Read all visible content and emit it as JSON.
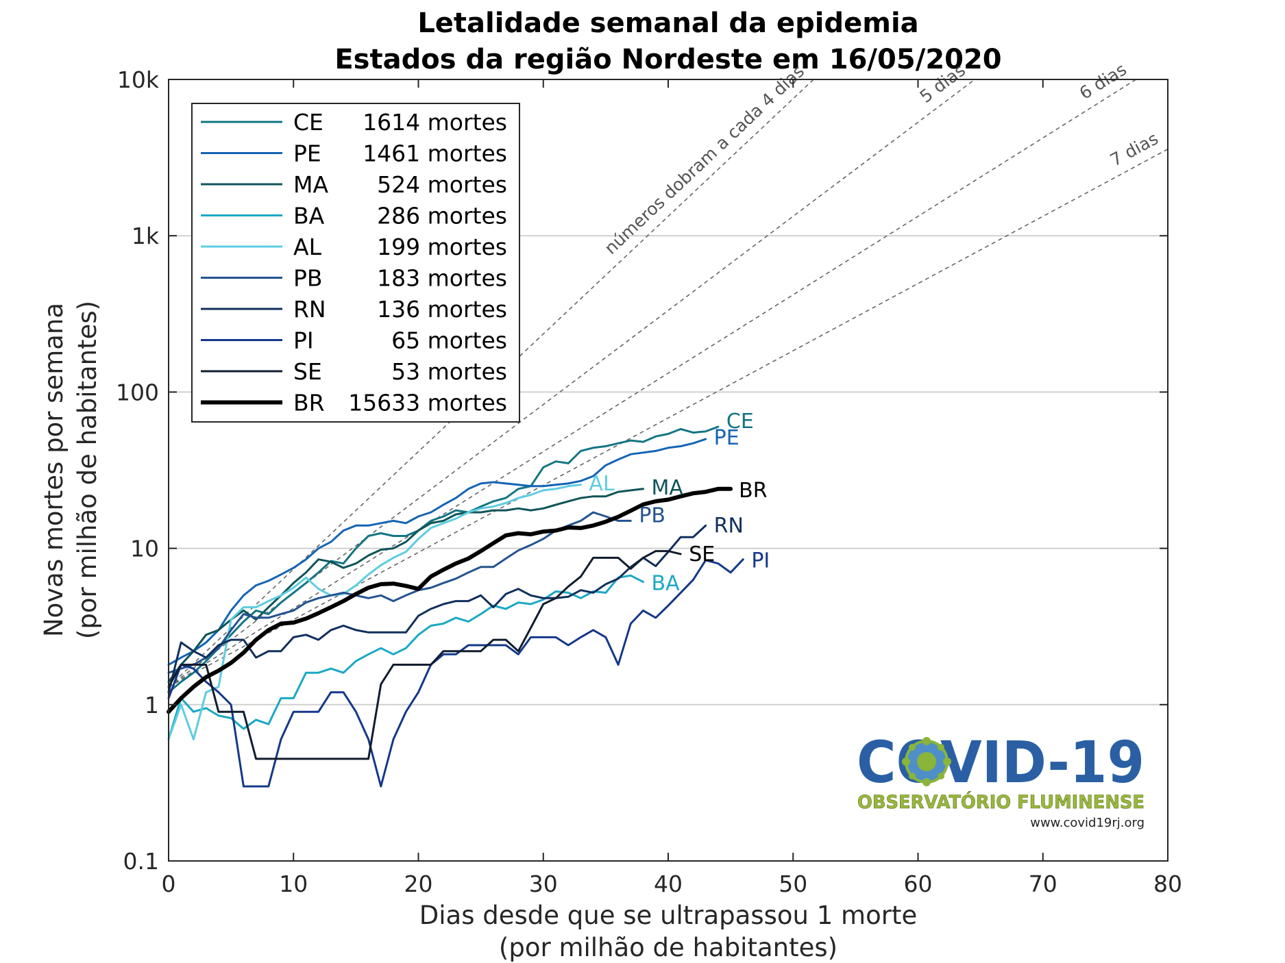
{
  "chart_data": {
    "type": "line",
    "title": "Letalidade semanal da epidemia",
    "subtitle": "Estados da região Nordeste em 16/05/2020",
    "xlabel": "Dias desde que se ultrapassou 1 morte",
    "xlabel2": "(por milhão de habitantes)",
    "ylabel": "Novas mortes por semana",
    "ylabel2": "(por milhão de habitantes)",
    "xlim": [
      0,
      80
    ],
    "ylim": [
      0.1,
      10000
    ],
    "yscale": "log",
    "grid": "horizontal",
    "legend_position": "top-left",
    "xticks": [
      0,
      10,
      20,
      30,
      40,
      50,
      60,
      70,
      80
    ],
    "xtick_labels": [
      "0",
      "10",
      "20",
      "30",
      "40",
      "50",
      "60",
      "70",
      "80"
    ],
    "yticks": [
      0.1,
      1,
      10,
      100,
      1000,
      10000
    ],
    "ytick_labels": [
      "0.1",
      "1",
      "10",
      "100",
      "1k",
      "10k"
    ],
    "reference_lines": [
      {
        "label": "números dobram a cada 4 dias",
        "doubling_days": 4,
        "x_start": 0,
        "y_start": 1.3
      },
      {
        "label": "5 dias",
        "doubling_days": 5,
        "x_start": 0,
        "y_start": 1.3
      },
      {
        "label": "6 dias",
        "doubling_days": 6,
        "x_start": 0,
        "y_start": 1.3
      },
      {
        "label": "7 dias",
        "doubling_days": 7,
        "x_start": 0,
        "y_start": 1.3
      }
    ],
    "series": [
      {
        "name": "CE",
        "deaths": "1614 mortes",
        "color": "#137583",
        "width": 3,
        "x": [
          0,
          1,
          2,
          3,
          4,
          5,
          6,
          7,
          8,
          9,
          10,
          11,
          12,
          13,
          14,
          15,
          16,
          17,
          18,
          19,
          20,
          21,
          22,
          23,
          24,
          25,
          26,
          27,
          28,
          29,
          30,
          31,
          32,
          33,
          34,
          35,
          36,
          37,
          38,
          39,
          40,
          41,
          42,
          43,
          44
        ],
        "y": [
          1.2,
          1.4,
          1.6,
          1.9,
          2.3,
          2.8,
          3.4,
          4.0,
          3.8,
          4.5,
          5.2,
          6.0,
          7.0,
          8.3,
          8.0,
          10.0,
          12.0,
          12.5,
          12.0,
          12.0,
          13.0,
          15.0,
          16.0,
          17.5,
          17.0,
          18.5,
          20.0,
          21.0,
          24.0,
          25.0,
          33.0,
          36.0,
          35.0,
          42.0,
          44.0,
          45.0,
          47.0,
          49.0,
          48.0,
          52.0,
          54.0,
          58.0,
          55.0,
          56.0,
          60.0
        ]
      },
      {
        "name": "PE",
        "deaths": "1461 mortes",
        "color": "#1464b4",
        "width": 3,
        "x": [
          0,
          1,
          2,
          3,
          4,
          5,
          6,
          7,
          8,
          9,
          10,
          11,
          12,
          13,
          14,
          15,
          16,
          17,
          18,
          19,
          20,
          21,
          22,
          23,
          24,
          25,
          26,
          27,
          28,
          29,
          30,
          31,
          32,
          33,
          34,
          35,
          36,
          37,
          38,
          39,
          40,
          41,
          42,
          43
        ],
        "y": [
          1.8,
          2.0,
          2.2,
          2.5,
          3.0,
          4.0,
          5.0,
          5.8,
          6.2,
          6.8,
          7.5,
          8.5,
          10.0,
          11.0,
          13.0,
          14.0,
          14.0,
          14.5,
          15.0,
          14.5,
          16.0,
          17.0,
          19.0,
          21.0,
          24.0,
          26.0,
          26.5,
          26.0,
          25.5,
          25.0,
          25.0,
          25.5,
          26.0,
          27.0,
          29.0,
          34.0,
          37.0,
          40.0,
          41.0,
          42.0,
          44.0,
          45.0,
          47.0,
          50.0
        ]
      },
      {
        "name": "MA",
        "deaths": "524 mortes",
        "color": "#0f5458",
        "width": 3,
        "x": [
          0,
          1,
          2,
          3,
          4,
          5,
          6,
          7,
          8,
          9,
          10,
          11,
          12,
          13,
          14,
          15,
          16,
          17,
          18,
          19,
          20,
          21,
          22,
          23,
          24,
          25,
          26,
          27,
          28,
          29,
          30,
          31,
          32,
          33,
          34,
          35,
          36,
          37,
          38
        ],
        "y": [
          1.4,
          1.8,
          2.2,
          2.8,
          3.0,
          3.5,
          4.0,
          3.5,
          4.2,
          5.0,
          6.0,
          7.0,
          8.5,
          8.2,
          7.5,
          8.0,
          9.0,
          9.8,
          10.0,
          11.0,
          13.0,
          14.5,
          15.0,
          16.5,
          17.0,
          17.0,
          17.5,
          17.5,
          18.0,
          17.5,
          18.0,
          19.0,
          20.0,
          21.0,
          21.5,
          21.5,
          23.0,
          23.5,
          24.0
        ]
      },
      {
        "name": "BA",
        "deaths": "286 mortes",
        "color": "#1aa8c4",
        "width": 3,
        "x": [
          0,
          1,
          2,
          3,
          4,
          5,
          6,
          7,
          8,
          9,
          10,
          11,
          12,
          13,
          14,
          15,
          16,
          17,
          18,
          19,
          20,
          21,
          22,
          23,
          24,
          25,
          26,
          27,
          28,
          29,
          30,
          31,
          32,
          33,
          34,
          35,
          36,
          37,
          38
        ],
        "y": [
          0.6,
          1.1,
          0.9,
          0.95,
          0.85,
          0.82,
          0.7,
          0.8,
          0.75,
          1.1,
          1.1,
          1.6,
          1.6,
          1.7,
          1.6,
          1.9,
          2.1,
          2.3,
          2.1,
          2.3,
          2.8,
          3.2,
          3.3,
          3.6,
          3.4,
          3.8,
          4.3,
          4.1,
          4.5,
          4.4,
          4.7,
          5.3,
          5.2,
          4.8,
          5.3,
          5.2,
          6.5,
          6.7,
          6.1
        ]
      },
      {
        "name": "AL",
        "deaths": "199 mortes",
        "color": "#5ccde0",
        "width": 3,
        "x": [
          0,
          1,
          2,
          3,
          4,
          5,
          6,
          7,
          8,
          9,
          10,
          11,
          12,
          13,
          14,
          15,
          16,
          17,
          18,
          19,
          20,
          21,
          22,
          23,
          24,
          25,
          26,
          27,
          28,
          29,
          30,
          31,
          32,
          33
        ],
        "y": [
          0.6,
          1.0,
          0.6,
          1.2,
          1.3,
          3.5,
          4.2,
          4.2,
          4.6,
          5.0,
          5.6,
          6.5,
          5.5,
          5.0,
          5.1,
          5.8,
          6.8,
          7.8,
          8.7,
          9.5,
          11.5,
          13.5,
          14.5,
          15.5,
          17.0,
          18.0,
          18.5,
          19.5,
          21.0,
          22.0,
          23.5,
          24.0,
          25.0,
          25.5
        ]
      },
      {
        "name": "PB",
        "deaths": "183 mortes",
        "color": "#24538f",
        "width": 3,
        "x": [
          0,
          1,
          2,
          3,
          4,
          5,
          6,
          7,
          8,
          9,
          10,
          11,
          12,
          13,
          14,
          15,
          16,
          17,
          18,
          19,
          20,
          21,
          22,
          23,
          24,
          25,
          26,
          27,
          28,
          29,
          30,
          31,
          32,
          33,
          34,
          35,
          36,
          37
        ],
        "y": [
          1.6,
          1.7,
          1.8,
          2.0,
          2.3,
          3.0,
          3.8,
          3.6,
          3.6,
          3.8,
          4.0,
          4.5,
          4.8,
          5.0,
          5.2,
          5.0,
          4.8,
          5.0,
          4.6,
          5.0,
          5.4,
          5.6,
          6.0,
          6.4,
          7.0,
          7.6,
          7.6,
          8.6,
          9.7,
          10.5,
          11.5,
          13.0,
          14.0,
          15.0,
          17.0,
          16.0,
          15.0,
          15.0
        ]
      },
      {
        "name": "RN",
        "deaths": "136 mortes",
        "color": "#102f5c",
        "width": 3,
        "x": [
          0,
          1,
          2,
          3,
          4,
          5,
          6,
          7,
          8,
          9,
          10,
          11,
          12,
          13,
          14,
          15,
          16,
          17,
          18,
          19,
          20,
          21,
          22,
          23,
          24,
          25,
          26,
          27,
          28,
          29,
          30,
          31,
          32,
          33,
          34,
          35,
          36,
          37,
          38,
          39,
          40,
          41,
          42,
          43
        ],
        "y": [
          1.2,
          2.5,
          2.2,
          2.0,
          2.4,
          2.6,
          2.6,
          2.0,
          2.2,
          2.2,
          2.7,
          2.8,
          2.6,
          3.0,
          3.2,
          3.0,
          2.9,
          2.9,
          2.9,
          2.9,
          3.7,
          4.1,
          4.4,
          4.6,
          4.6,
          5.0,
          4.2,
          5.1,
          5.5,
          5.0,
          4.8,
          4.8,
          4.9,
          5.4,
          5.2,
          5.9,
          6.4,
          7.6,
          8.7,
          7.7,
          9.5,
          11.8,
          11.8,
          14.0
        ]
      },
      {
        "name": "PI",
        "deaths": "65 mortes",
        "color": "#14388a",
        "width": 3,
        "x": [
          0,
          1,
          2,
          3,
          4,
          5,
          6,
          8,
          9,
          10,
          11,
          12,
          13,
          14,
          15,
          16,
          17,
          18,
          19,
          20,
          21,
          22,
          23,
          24,
          25,
          26,
          27,
          28,
          29,
          30,
          31,
          32,
          33,
          34,
          35,
          36,
          37,
          38,
          39,
          40,
          41,
          42,
          43,
          44,
          45,
          46
        ],
        "y": [
          1.1,
          1.8,
          1.7,
          1.4,
          1.2,
          1.0,
          0.3,
          0.3,
          0.6,
          0.9,
          0.9,
          0.9,
          1.2,
          1.2,
          0.9,
          0.6,
          0.3,
          0.6,
          0.9,
          1.2,
          1.8,
          2.1,
          2.1,
          2.4,
          2.4,
          2.4,
          2.4,
          2.1,
          2.7,
          2.7,
          2.7,
          2.4,
          2.7,
          3.0,
          2.7,
          1.8,
          3.3,
          4.0,
          3.6,
          4.3,
          5.2,
          6.3,
          8.4,
          8.0,
          7.0,
          8.5
        ]
      },
      {
        "name": "SE",
        "deaths": "53 mortes",
        "color": "#111d2e",
        "width": 3,
        "x": [
          0,
          1,
          2,
          3,
          4,
          5,
          6,
          7,
          13,
          14,
          15,
          16,
          17,
          18,
          19,
          20,
          21,
          22,
          23,
          24,
          25,
          26,
          27,
          28,
          29,
          30,
          31,
          32,
          33,
          34,
          35,
          36,
          37,
          38,
          39,
          40,
          41
        ],
        "y": [
          1.3,
          1.8,
          1.8,
          1.8,
          0.9,
          0.9,
          0.9,
          0.45,
          0.45,
          0.45,
          0.45,
          0.45,
          1.35,
          1.8,
          1.8,
          1.8,
          1.8,
          2.2,
          2.2,
          2.2,
          2.2,
          2.6,
          2.6,
          2.2,
          3.1,
          4.4,
          4.8,
          5.7,
          6.6,
          8.7,
          8.7,
          8.7,
          7.4,
          8.7,
          9.6,
          9.6,
          9.2
        ]
      },
      {
        "name": "BR",
        "deaths": "15633 mortes",
        "color": "#000000",
        "width": 6,
        "x": [
          0,
          1,
          2,
          3,
          4,
          5,
          6,
          7,
          8,
          9,
          10,
          11,
          12,
          13,
          14,
          15,
          16,
          17,
          18,
          19,
          20,
          21,
          22,
          23,
          24,
          25,
          26,
          27,
          28,
          29,
          30,
          31,
          32,
          33,
          34,
          35,
          36,
          37,
          38,
          39,
          40,
          41,
          42,
          43,
          44,
          45
        ],
        "y": [
          0.9,
          1.1,
          1.3,
          1.5,
          1.65,
          1.85,
          2.15,
          2.6,
          3.0,
          3.3,
          3.35,
          3.55,
          3.85,
          4.2,
          4.6,
          5.1,
          5.6,
          5.9,
          5.95,
          5.75,
          5.5,
          6.6,
          7.3,
          8.0,
          8.6,
          9.6,
          10.8,
          12.1,
          12.5,
          12.3,
          12.8,
          13.0,
          13.6,
          13.5,
          14.0,
          14.8,
          15.9,
          17.4,
          19.1,
          20.0,
          20.5,
          21.5,
          22.5,
          23.0,
          24.0,
          24.0
        ]
      }
    ],
    "end_labels": [
      {
        "name": "CE",
        "color": "#137583"
      },
      {
        "name": "PE",
        "color": "#1464b4"
      },
      {
        "name": "AL",
        "color": "#5ccde0"
      },
      {
        "name": "MA",
        "color": "#0f5458"
      },
      {
        "name": "BR",
        "color": "#000000"
      },
      {
        "name": "PB",
        "color": "#24538f"
      },
      {
        "name": "RN",
        "color": "#102f5c"
      },
      {
        "name": "SE",
        "color": "#000000"
      },
      {
        "name": "PI",
        "color": "#14388a"
      },
      {
        "name": "BA",
        "color": "#1aa8c4"
      }
    ]
  },
  "logo": {
    "title": "COVID-19",
    "subtitle": "OBSERVATÓRIO FLUMINENSE",
    "url": "www.covid19rj.org"
  }
}
